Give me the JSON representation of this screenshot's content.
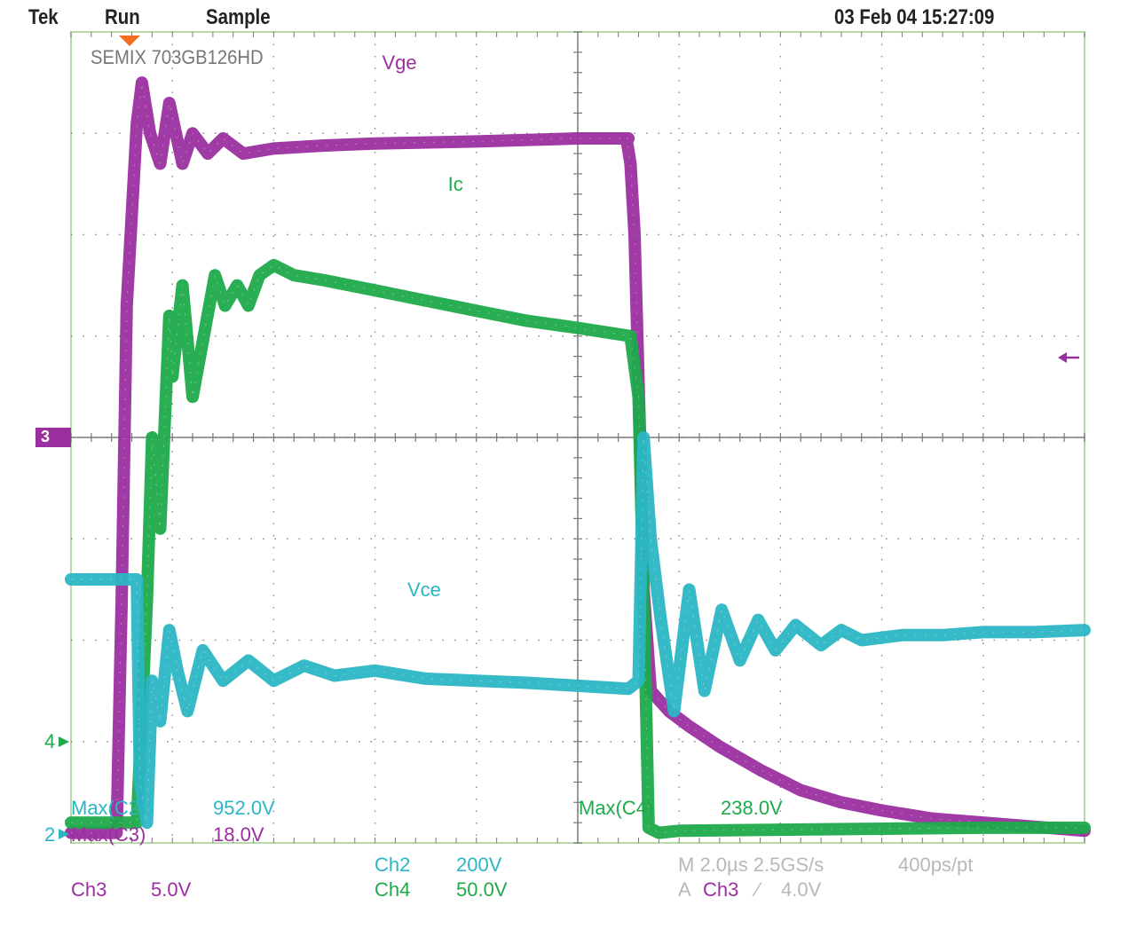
{
  "header": {
    "brand": "Tek",
    "mode": "Run",
    "acq": "Sample",
    "datetime": "03 Feb 04 15:27:09"
  },
  "device_label": "SEMIX 703GB126HD",
  "colors": {
    "vge": "#9b2fa0",
    "ic": "#1faa4a",
    "vce": "#2bb6c4",
    "grid": "#8a8a8a",
    "frame": "#b8d9a8",
    "trigger": "#f07020",
    "dim": "#b8b8b8"
  },
  "markers": {
    "ref_center": "3",
    "ch4": "4",
    "ch2": "2"
  },
  "measurements": [
    {
      "label": "Max(C2)",
      "value": "952.0V",
      "color": "vce"
    },
    {
      "label": "Max(C3)",
      "value": "18.0V",
      "color": "vge"
    },
    {
      "label": "Max(C4)",
      "value": "238.0V",
      "color": "ic"
    }
  ],
  "channels": {
    "ch2": {
      "label": "Ch2",
      "scale": "200V"
    },
    "ch3": {
      "label": "Ch3",
      "scale": "5.0V"
    },
    "ch4": {
      "label": "Ch4",
      "scale": "50.0V"
    }
  },
  "timebase": {
    "main": "M 2.0µs 2.5GS/s",
    "record": "400ps/pt",
    "trigger_prefix": "A",
    "trigger_source": "Ch3",
    "trigger_level": "4.0V",
    "trigger_slope_glyph": "⁄"
  },
  "chart_data": {
    "type": "line",
    "title": "",
    "xlabel": "",
    "ylabel": "",
    "x_units": "divisions",
    "y_units": "divisions",
    "xlim": [
      0,
      10
    ],
    "ylim": [
      0,
      8
    ],
    "grid": true,
    "series": [
      {
        "name": "Vge",
        "color": "vge",
        "x": [
          0,
          0.45,
          0.5,
          0.55,
          0.65,
          0.7,
          0.78,
          0.88,
          0.97,
          1.1,
          1.2,
          1.35,
          1.5,
          1.7,
          2.0,
          2.5,
          3.0,
          4.0,
          5.0,
          5.5,
          5.48,
          5.52,
          5.56,
          5.62,
          5.65,
          5.72,
          5.9,
          6.1,
          6.4,
          6.8,
          7.2,
          7.6,
          8.0,
          8.5,
          9.0,
          9.5,
          10.0
        ],
        "y": [
          0.1,
          0.1,
          2.4,
          5.3,
          7.1,
          7.5,
          7.0,
          6.7,
          7.3,
          6.7,
          7.0,
          6.8,
          6.95,
          6.8,
          6.85,
          6.88,
          6.9,
          6.92,
          6.95,
          6.95,
          6.95,
          6.7,
          6.0,
          3.8,
          2.5,
          1.5,
          1.3,
          1.15,
          0.95,
          0.72,
          0.52,
          0.4,
          0.32,
          0.24,
          0.2,
          0.16,
          0.12
        ]
      },
      {
        "name": "Ic",
        "color": "ic",
        "x": [
          0,
          0.65,
          0.75,
          0.8,
          0.88,
          0.97,
          1.0,
          1.1,
          1.2,
          1.42,
          1.52,
          1.64,
          1.75,
          1.86,
          2.0,
          2.2,
          2.5,
          3.0,
          3.5,
          4.0,
          4.5,
          5.0,
          5.52,
          5.6,
          5.66,
          5.7,
          5.8,
          6.0,
          7.0,
          8.0,
          9.0,
          10.0
        ],
        "y": [
          0.2,
          0.2,
          2.4,
          4.0,
          3.1,
          5.2,
          4.6,
          5.5,
          4.4,
          5.6,
          5.3,
          5.5,
          5.3,
          5.6,
          5.7,
          5.6,
          5.55,
          5.45,
          5.35,
          5.25,
          5.15,
          5.08,
          5.0,
          4.4,
          2.0,
          0.15,
          0.1,
          0.12,
          0.13,
          0.14,
          0.15,
          0.15
        ]
      },
      {
        "name": "Vce",
        "color": "vce",
        "x": [
          0,
          0.65,
          0.68,
          0.75,
          0.8,
          0.88,
          0.97,
          1.05,
          1.15,
          1.3,
          1.5,
          1.75,
          2.0,
          2.3,
          2.6,
          3.0,
          3.5,
          4.0,
          4.5,
          5.0,
          5.5,
          5.6,
          5.65,
          5.72,
          5.82,
          5.95,
          6.1,
          6.25,
          6.42,
          6.6,
          6.78,
          6.95,
          7.15,
          7.4,
          7.6,
          7.8,
          8.2,
          8.6,
          9.0,
          9.5,
          10.0
        ],
        "y": [
          2.6,
          2.6,
          0.6,
          0.2,
          1.6,
          1.2,
          2.1,
          1.7,
          1.3,
          1.9,
          1.6,
          1.8,
          1.6,
          1.75,
          1.65,
          1.7,
          1.62,
          1.6,
          1.58,
          1.55,
          1.52,
          1.6,
          4.0,
          3.0,
          2.2,
          1.3,
          2.5,
          1.5,
          2.3,
          1.8,
          2.2,
          1.9,
          2.15,
          1.95,
          2.1,
          2.0,
          2.05,
          2.05,
          2.08,
          2.08,
          2.1
        ]
      }
    ],
    "annotations": [
      {
        "text": "Vge",
        "color": "vge",
        "x": 3.2,
        "y": 7.7
      },
      {
        "text": "Ic",
        "color": "ic",
        "x": 3.85,
        "y": 6.5
      },
      {
        "text": "Vce",
        "color": "vce",
        "x": 3.45,
        "y": 2.5
      }
    ]
  }
}
